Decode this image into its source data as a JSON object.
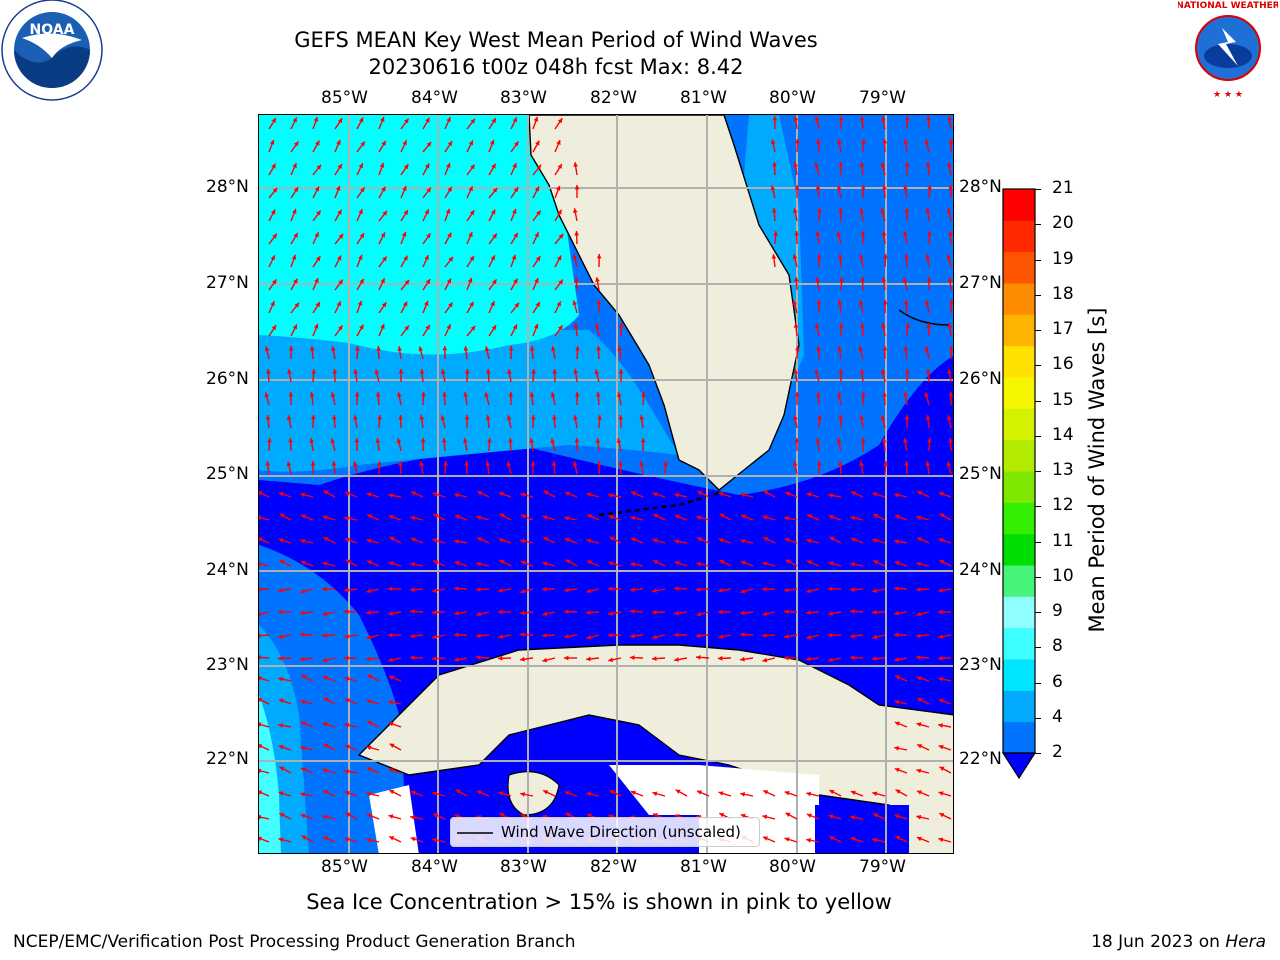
{
  "title_line1": "GEFS MEAN Key West Mean Period of Wind Waves",
  "title_line2": "20230616 t00z 048h fcst   Max: 8.42",
  "logos": {
    "left": "NOAA",
    "left_ring": "NATIONAL OCEANIC AND ATMOSPHERIC ADMINISTRATION · U.S. DEPARTMENT OF COMMERCE",
    "right": "NATIONAL WEATHER SERVICE"
  },
  "lon_labels": [
    "85°W",
    "84°W",
    "83°W",
    "82°W",
    "81°W",
    "80°W",
    "79°W"
  ],
  "lat_labels": [
    "28°N",
    "27°N",
    "26°N",
    "25°N",
    "24°N",
    "23°N",
    "22°N"
  ],
  "legend_label": "Wind Wave Direction (unscaled)",
  "colorbar": {
    "label": "Mean Period of Wind Waves [s]",
    "ticks": [
      "2",
      "4",
      "6",
      "8",
      "9",
      "10",
      "11",
      "12",
      "13",
      "14",
      "15",
      "16",
      "17",
      "18",
      "19",
      "20",
      "21"
    ],
    "colors": [
      "#0074ff",
      "#00aaff",
      "#00e5ff",
      "#3effff",
      "#90ffff",
      "#47f47a",
      "#00dd00",
      "#33ee00",
      "#80e800",
      "#b2ea00",
      "#d4f200",
      "#f5f500",
      "#ffe100",
      "#ffb400",
      "#ff8c00",
      "#ff5500",
      "#ff2a00",
      "#ff0000"
    ],
    "extend_color": "#0000ff"
  },
  "note": "Sea Ice Concentration > 15% is shown in pink to yellow",
  "footer_left": "NCEP/EMC/Verification Post Processing Product Generation Branch",
  "footer_right_prefix": "18 Jun 2023 on ",
  "footer_right_machine": "Hera",
  "field_colors": {
    "land": "#efeedc",
    "cyan": "#00ffff",
    "light_cyan": "#44ffff",
    "light_blue": "#00aaff",
    "blue": "#0074ff",
    "deep_blue": "#0000ff",
    "arrow": "#ff0000"
  }
}
